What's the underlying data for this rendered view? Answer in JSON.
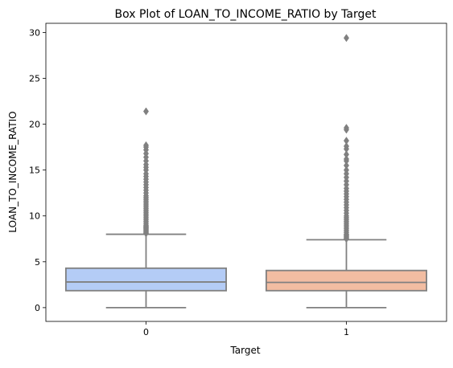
{
  "chart_data": {
    "type": "box",
    "title": "Box Plot of LOAN_TO_INCOME_RATIO by Target",
    "xlabel": "Target",
    "ylabel": "LOAN_TO_INCOME_RATIO",
    "categories": [
      "0",
      "1"
    ],
    "ylim": [
      -1.5,
      31
    ],
    "yticks": [
      0,
      5,
      10,
      15,
      20,
      25,
      30
    ],
    "grid": false,
    "legend": "none",
    "colors": {
      "box_0": "#b4ccf6",
      "box_1": "#f2bda2",
      "lines": "#808080",
      "axes": "#000000",
      "background": "#ffffff"
    },
    "boxes": [
      {
        "category": "0",
        "min": 0.0,
        "q1": 1.85,
        "median": 2.8,
        "q3": 4.3,
        "max": 8.0,
        "outliers": [
          8.1,
          8.2,
          8.3,
          8.4,
          8.5,
          8.6,
          8.7,
          8.8,
          8.9,
          9.0,
          9.2,
          9.4,
          9.6,
          9.8,
          10.0,
          10.2,
          10.4,
          10.6,
          10.8,
          11.0,
          11.2,
          11.4,
          11.6,
          11.8,
          12.0,
          12.2,
          12.5,
          12.8,
          13.1,
          13.4,
          13.7,
          14.0,
          14.3,
          14.6,
          15.0,
          15.3,
          15.6,
          16.0,
          16.4,
          16.8,
          17.2,
          17.5,
          17.7,
          21.4
        ]
      },
      {
        "category": "1",
        "min": 0.0,
        "q1": 1.85,
        "median": 2.75,
        "q3": 4.05,
        "max": 7.4,
        "outliers": [
          7.5,
          7.6,
          7.7,
          7.8,
          7.9,
          8.0,
          8.2,
          8.4,
          8.6,
          8.8,
          9.0,
          9.2,
          9.4,
          9.6,
          9.8,
          10.0,
          10.3,
          10.6,
          10.9,
          11.2,
          11.5,
          11.8,
          12.1,
          12.4,
          12.7,
          13.0,
          13.4,
          13.8,
          14.2,
          14.6,
          15.0,
          15.5,
          16.0,
          16.2,
          16.7,
          17.3,
          17.6,
          18.2,
          19.4,
          19.6,
          29.4
        ]
      }
    ]
  }
}
